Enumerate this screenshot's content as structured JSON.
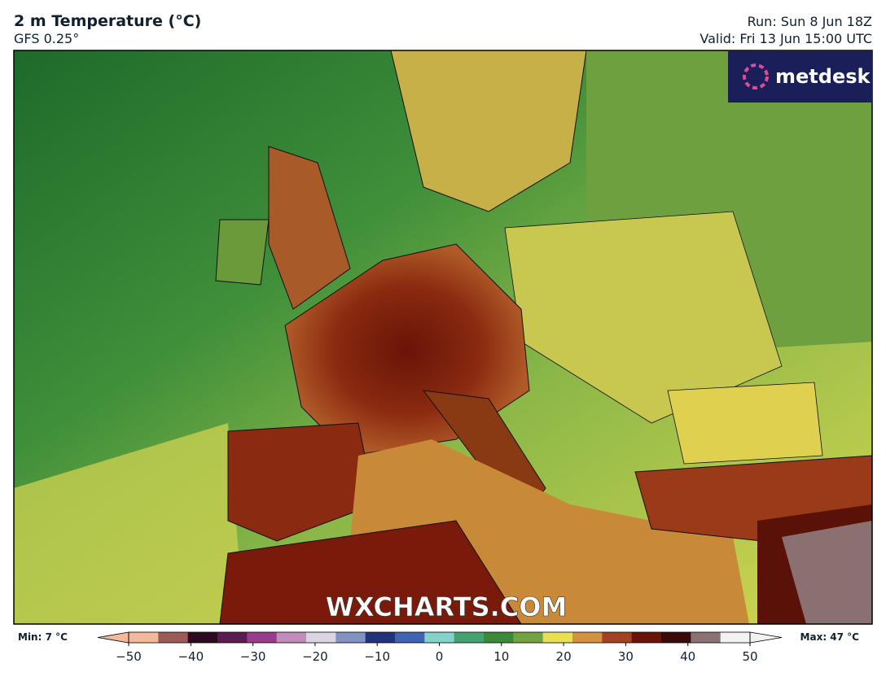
{
  "header": {
    "title": "2 m Temperature (°C)",
    "subtitle": "GFS 0.25°",
    "run": "Run: Sun 8 Jun 18Z",
    "valid": "Valid: Fri 13 Jun 15:00 UTC"
  },
  "logo": "metdesk",
  "watermark": "WXCHARTS.COM",
  "colorbar": {
    "min_label": "Min: 7 °C",
    "max_label": "Max: 47 °C",
    "lim": [
      -50,
      50
    ],
    "colors": [
      "#f3b99b",
      "#9c5a58",
      "#2b0a22",
      "#5c1c52",
      "#9a3c8c",
      "#c28cba",
      "#dcd4e2",
      "#8292c2",
      "#22327c",
      "#4262b2",
      "#84d2ca",
      "#42a272",
      "#3a8a3a",
      "#72a242",
      "#e8e052",
      "#d29242",
      "#a24222",
      "#6a1408",
      "#3a0a08",
      "#8a7272",
      "#f2f2f2"
    ],
    "ticks": [
      {
        "value": -50,
        "label": "−50"
      },
      {
        "value": -40,
        "label": "−40"
      },
      {
        "value": -30,
        "label": "−30"
      },
      {
        "value": -20,
        "label": "−20"
      },
      {
        "value": -10,
        "label": "−10"
      },
      0,
      10,
      20,
      30,
      40,
      50
    ]
  }
}
